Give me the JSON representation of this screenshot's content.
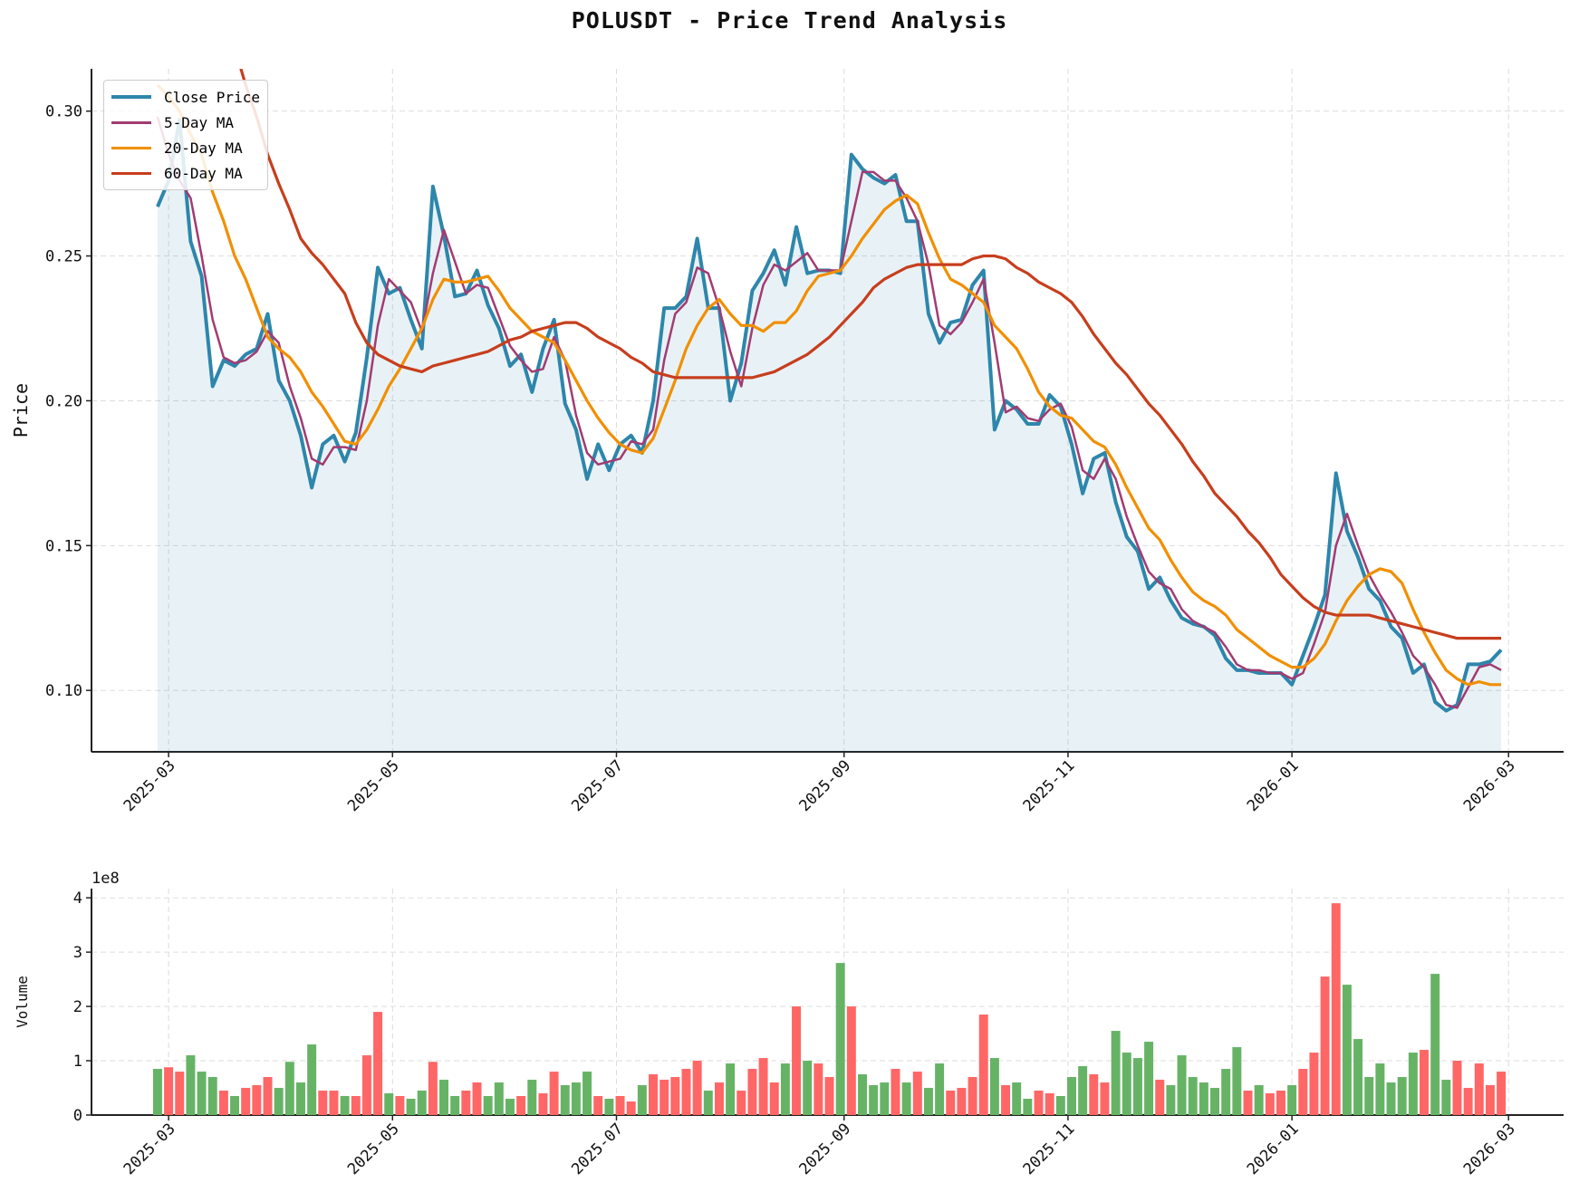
{
  "title": "POLUSDT - Price Trend Analysis",
  "chart_data": [
    {
      "type": "line",
      "ylabel": "Price",
      "ylim": [
        0.0788,
        0.3146
      ],
      "xlim": [
        "2025-02-08",
        "2026-03-16"
      ],
      "yticks": [
        0.1,
        0.15,
        0.2,
        0.25,
        0.3
      ],
      "ytick_labels": [
        "0.10",
        "0.15",
        "0.20",
        "0.25",
        "0.30"
      ],
      "xticks": [
        "2025-03-01",
        "2025-05-01",
        "2025-07-01",
        "2025-09-01",
        "2025-11-01",
        "2026-01-01",
        "2026-03-01"
      ],
      "xtick_labels": [
        "2025-03",
        "2025-05",
        "2025-07",
        "2025-09",
        "2025-11",
        "2026-01",
        "2026-03"
      ],
      "grid": true,
      "legend_position": "top-left",
      "x_step_note_free": true,
      "dates_start": "2025-02-26",
      "series": [
        {
          "name": "Close Price",
          "color": "#2e86ab",
          "fill": true,
          "values": [
            0.267,
            0.276,
            0.297,
            0.255,
            0.243,
            0.205,
            0.214,
            0.212,
            0.216,
            0.218,
            0.23,
            0.207,
            0.2,
            0.188,
            0.17,
            0.185,
            0.188,
            0.179,
            0.189,
            0.215,
            0.246,
            0.237,
            0.239,
            0.228,
            0.218,
            0.274,
            0.257,
            0.236,
            0.237,
            0.245,
            0.233,
            0.225,
            0.212,
            0.216,
            0.203,
            0.218,
            0.228,
            0.199,
            0.19,
            0.173,
            0.185,
            0.176,
            0.185,
            0.188,
            0.182,
            0.2,
            0.232,
            0.232,
            0.236,
            0.256,
            0.232,
            0.232,
            0.2,
            0.213,
            0.238,
            0.244,
            0.252,
            0.24,
            0.26,
            0.244,
            0.245,
            0.245,
            0.244,
            0.285,
            0.28,
            0.277,
            0.275,
            0.278,
            0.262,
            0.262,
            0.23,
            0.22,
            0.227,
            0.228,
            0.24,
            0.245,
            0.19,
            0.2,
            0.197,
            0.192,
            0.192,
            0.202,
            0.198,
            0.185,
            0.168,
            0.18,
            0.182,
            0.165,
            0.153,
            0.148,
            0.135,
            0.139,
            0.131,
            0.125,
            0.123,
            0.122,
            0.119,
            0.111,
            0.107,
            0.107,
            0.106,
            0.106,
            0.106,
            0.102,
            0.112,
            0.122,
            0.133,
            0.175,
            0.155,
            0.146,
            0.135,
            0.131,
            0.122,
            0.118,
            0.106,
            0.109,
            0.096,
            0.093,
            0.095,
            0.109,
            0.109,
            0.11,
            0.114
          ]
        },
        {
          "name": "5-Day MA",
          "color": "#a23b72",
          "values": [
            0.298,
            0.285,
            0.276,
            0.27,
            0.25,
            0.228,
            0.215,
            0.213,
            0.214,
            0.217,
            0.224,
            0.22,
            0.205,
            0.194,
            0.18,
            0.178,
            0.184,
            0.184,
            0.183,
            0.2,
            0.226,
            0.242,
            0.238,
            0.234,
            0.224,
            0.244,
            0.259,
            0.248,
            0.237,
            0.24,
            0.239,
            0.229,
            0.219,
            0.214,
            0.21,
            0.211,
            0.222,
            0.214,
            0.195,
            0.182,
            0.178,
            0.179,
            0.18,
            0.186,
            0.185,
            0.19,
            0.214,
            0.23,
            0.234,
            0.246,
            0.244,
            0.232,
            0.217,
            0.205,
            0.225,
            0.24,
            0.247,
            0.245,
            0.248,
            0.251,
            0.245,
            0.245,
            0.245,
            0.262,
            0.279,
            0.279,
            0.276,
            0.276,
            0.27,
            0.262,
            0.247,
            0.226,
            0.223,
            0.227,
            0.234,
            0.242,
            0.22,
            0.196,
            0.198,
            0.194,
            0.193,
            0.197,
            0.199,
            0.191,
            0.176,
            0.173,
            0.18,
            0.173,
            0.16,
            0.15,
            0.141,
            0.137,
            0.135,
            0.128,
            0.124,
            0.122,
            0.12,
            0.115,
            0.109,
            0.107,
            0.107,
            0.106,
            0.106,
            0.104,
            0.106,
            0.116,
            0.127,
            0.15,
            0.161,
            0.15,
            0.14,
            0.133,
            0.127,
            0.12,
            0.112,
            0.108,
            0.102,
            0.095,
            0.094,
            0.101,
            0.108,
            0.109,
            0.107
          ]
        },
        {
          "name": "20-Day MA",
          "color": "#f18f01",
          "values": [
            0.309,
            0.305,
            0.3,
            0.292,
            0.285,
            0.272,
            0.262,
            0.25,
            0.242,
            0.232,
            0.222,
            0.218,
            0.215,
            0.21,
            0.203,
            0.198,
            0.192,
            0.186,
            0.185,
            0.19,
            0.197,
            0.205,
            0.211,
            0.218,
            0.225,
            0.235,
            0.242,
            0.241,
            0.241,
            0.242,
            0.243,
            0.238,
            0.232,
            0.228,
            0.224,
            0.222,
            0.22,
            0.214,
            0.207,
            0.2,
            0.194,
            0.189,
            0.185,
            0.183,
            0.182,
            0.187,
            0.197,
            0.207,
            0.218,
            0.226,
            0.232,
            0.235,
            0.23,
            0.226,
            0.226,
            0.224,
            0.227,
            0.227,
            0.231,
            0.238,
            0.243,
            0.244,
            0.245,
            0.25,
            0.256,
            0.261,
            0.266,
            0.269,
            0.271,
            0.268,
            0.258,
            0.249,
            0.242,
            0.24,
            0.237,
            0.234,
            0.226,
            0.222,
            0.218,
            0.211,
            0.203,
            0.198,
            0.195,
            0.194,
            0.19,
            0.186,
            0.184,
            0.178,
            0.17,
            0.163,
            0.156,
            0.152,
            0.145,
            0.139,
            0.134,
            0.131,
            0.129,
            0.126,
            0.121,
            0.118,
            0.115,
            0.112,
            0.11,
            0.108,
            0.108,
            0.111,
            0.116,
            0.124,
            0.131,
            0.136,
            0.14,
            0.142,
            0.141,
            0.137,
            0.128,
            0.12,
            0.113,
            0.107,
            0.104,
            0.102,
            0.103,
            0.102,
            0.102
          ]
        },
        {
          "name": "60-Day MA",
          "color": "#c73e1d",
          "values": [
            null,
            null,
            null,
            null,
            null,
            null,
            null,
            0.322,
            0.309,
            0.298,
            0.285,
            0.275,
            0.266,
            0.256,
            0.251,
            0.247,
            0.242,
            0.237,
            0.227,
            0.22,
            0.216,
            0.214,
            0.212,
            0.211,
            0.21,
            0.212,
            0.213,
            0.214,
            0.215,
            0.216,
            0.217,
            0.219,
            0.221,
            0.222,
            0.224,
            0.225,
            0.226,
            0.227,
            0.227,
            0.225,
            0.222,
            0.22,
            0.218,
            0.215,
            0.213,
            0.21,
            0.209,
            0.208,
            0.208,
            0.208,
            0.208,
            0.208,
            0.208,
            0.208,
            0.208,
            0.209,
            0.21,
            0.212,
            0.214,
            0.216,
            0.219,
            0.222,
            0.226,
            0.23,
            0.234,
            0.239,
            0.242,
            0.244,
            0.246,
            0.247,
            0.247,
            0.247,
            0.247,
            0.247,
            0.249,
            0.25,
            0.25,
            0.249,
            0.246,
            0.244,
            0.241,
            0.239,
            0.237,
            0.234,
            0.229,
            0.223,
            0.218,
            0.213,
            0.209,
            0.204,
            0.199,
            0.195,
            0.19,
            0.185,
            0.179,
            0.174,
            0.168,
            0.164,
            0.16,
            0.155,
            0.151,
            0.146,
            0.14,
            0.136,
            0.132,
            0.129,
            0.127,
            0.126,
            0.126,
            0.126,
            0.126,
            0.125,
            0.124,
            0.123,
            0.122,
            0.121,
            0.12,
            0.119,
            0.118,
            0.118,
            0.118,
            0.118,
            0.118
          ]
        }
      ]
    },
    {
      "type": "bar",
      "ylabel": "Volume",
      "offset_label": "1e8",
      "ylim": [
        0,
        4.17
      ],
      "yticks": [
        0,
        1,
        2,
        3,
        4
      ],
      "ytick_labels": [
        "0",
        "1",
        "2",
        "3",
        "4"
      ],
      "xlim": [
        "2025-02-08",
        "2026-03-16"
      ],
      "xticks": [
        "2025-03-01",
        "2025-05-01",
        "2025-07-01",
        "2025-09-01",
        "2025-11-01",
        "2026-01-01",
        "2026-03-01"
      ],
      "xtick_labels": [
        "2025-03",
        "2025-05",
        "2025-07",
        "2025-09",
        "2025-11",
        "2026-01",
        "2026-03"
      ],
      "grid": true,
      "up_color": "#ff6666",
      "down_color": "#66b366",
      "unit": "1e8",
      "values": [
        0.85,
        0.88,
        0.8,
        1.1,
        0.8,
        0.7,
        0.45,
        0.35,
        0.5,
        0.55,
        0.7,
        0.5,
        0.98,
        0.6,
        1.3,
        0.45,
        0.45,
        0.35,
        0.35,
        1.1,
        1.9,
        0.4,
        0.35,
        0.3,
        0.45,
        0.98,
        0.65,
        0.35,
        0.45,
        0.6,
        0.35,
        0.6,
        0.3,
        0.35,
        0.65,
        0.4,
        0.8,
        0.55,
        0.6,
        0.8,
        0.35,
        0.3,
        0.35,
        0.25,
        0.55,
        0.75,
        0.65,
        0.7,
        0.85,
        1.0,
        0.45,
        0.6,
        0.95,
        0.45,
        0.85,
        1.05,
        0.6,
        0.95,
        2.0,
        1.0,
        0.95,
        0.7,
        2.8,
        2.0,
        0.75,
        0.55,
        0.6,
        0.85,
        0.6,
        0.8,
        0.5,
        0.95,
        0.45,
        0.5,
        0.7,
        1.85,
        1.05,
        0.55,
        0.6,
        0.3,
        0.45,
        0.4,
        0.35,
        0.7,
        0.9,
        0.75,
        0.6,
        1.55,
        1.15,
        1.05,
        1.35,
        0.65,
        0.55,
        1.1,
        0.7,
        0.6,
        0.5,
        0.85,
        1.25,
        0.45,
        0.55,
        0.4,
        0.45,
        0.55,
        0.85,
        1.15,
        2.55,
        3.9,
        2.4,
        1.4,
        0.7,
        0.95,
        0.6,
        0.7,
        1.15,
        1.2,
        2.6,
        0.65,
        1.0,
        0.5,
        0.95,
        0.55,
        0.8
      ]
    }
  ]
}
